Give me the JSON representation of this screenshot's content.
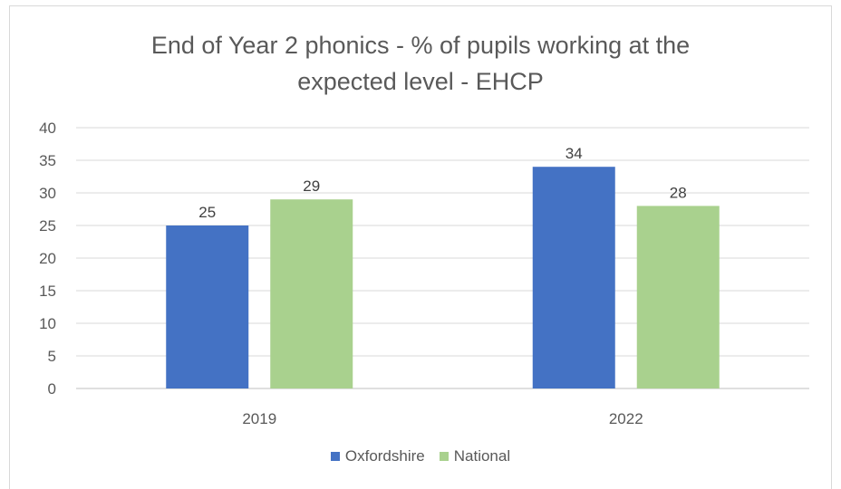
{
  "chart_data": {
    "type": "bar",
    "title": "End of Year 2 phonics - % of pupils working at the expected level - EHCP",
    "title_lines": [
      "End of Year 2 phonics - % of pupils working at the",
      "expected level - EHCP"
    ],
    "categories": [
      "2019",
      "2022"
    ],
    "series": [
      {
        "name": "Oxfordshire",
        "values": [
          25,
          34
        ],
        "color": "#4472c4"
      },
      {
        "name": "National",
        "values": [
          29,
          28
        ],
        "color": "#a9d18e"
      }
    ],
    "xlabel": "",
    "ylabel": "",
    "ylim": [
      0,
      40
    ],
    "yticks": [
      0,
      5,
      10,
      15,
      20,
      25,
      30,
      35,
      40
    ],
    "grid": true,
    "data_labels": true,
    "legend_position": "bottom"
  }
}
